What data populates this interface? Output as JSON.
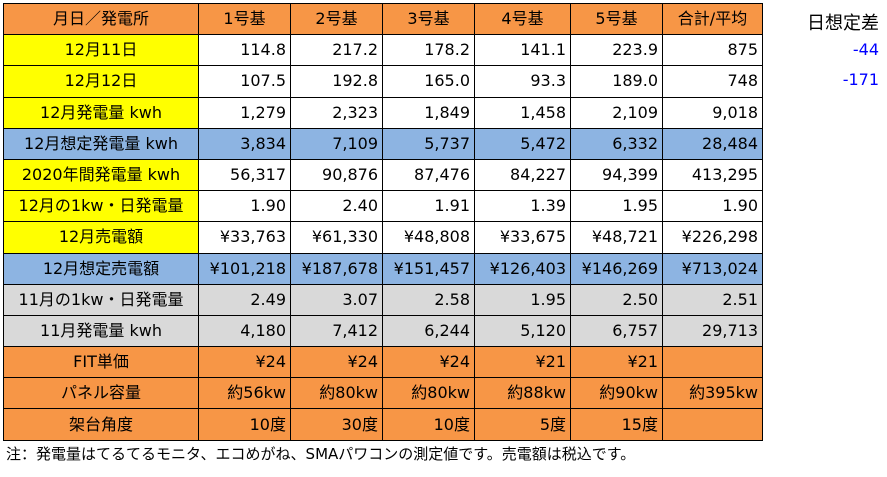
{
  "header": {
    "corner": "月日／発電所",
    "units": [
      "1号基",
      "2号基",
      "3号基",
      "4号基",
      "5号基"
    ],
    "total": "合計/平均"
  },
  "rows": [
    {
      "label": "12月11日",
      "values": [
        "114.8",
        "217.2",
        "178.2",
        "141.1",
        "223.9",
        "875"
      ]
    },
    {
      "label": "12月12日",
      "values": [
        "107.5",
        "192.8",
        "165.0",
        "93.3",
        "189.0",
        "748"
      ]
    },
    {
      "label": "12月発電量 kwh",
      "values": [
        "1,279",
        "2,323",
        "1,849",
        "1,458",
        "2,109",
        "9,018"
      ]
    },
    {
      "label": "12月想定発電量 kwh",
      "values": [
        "3,834",
        "7,109",
        "5,737",
        "5,472",
        "6,332",
        "28,484"
      ]
    },
    {
      "label": "2020年間発電量 kwh",
      "values": [
        "56,317",
        "90,876",
        "87,476",
        "84,227",
        "94,399",
        "413,295"
      ]
    },
    {
      "label": "12月の1kw・日発電量",
      "values": [
        "1.90",
        "2.40",
        "1.91",
        "1.39",
        "1.95",
        "1.90"
      ]
    },
    {
      "label": "12月売電額",
      "values": [
        "¥33,763",
        "¥61,330",
        "¥48,808",
        "¥33,675",
        "¥48,721",
        "¥226,298"
      ]
    },
    {
      "label": "12月想定売電額",
      "values": [
        "¥101,218",
        "¥187,678",
        "¥151,457",
        "¥126,403",
        "¥146,269",
        "¥713,024"
      ]
    },
    {
      "label": "11月の1kw・日発電量",
      "values": [
        "2.49",
        "3.07",
        "2.58",
        "1.95",
        "2.50",
        "2.51"
      ]
    },
    {
      "label": "11月発電量 kwh",
      "values": [
        "4,180",
        "7,412",
        "6,244",
        "5,120",
        "6,757",
        "29,713"
      ]
    },
    {
      "label": "FIT単価",
      "values": [
        "¥24",
        "¥24",
        "¥24",
        "¥21",
        "¥21",
        ""
      ]
    },
    {
      "label": "パネル容量",
      "values": [
        "約56kw",
        "約80kw",
        "約80kw",
        "約88kw",
        "約90kw",
        "約395kw"
      ]
    },
    {
      "label": "架台角度",
      "values": [
        "10度",
        "30度",
        "10度",
        "5度",
        "15度",
        ""
      ]
    }
  ],
  "side": {
    "title": "日想定差",
    "values": [
      "-44",
      "-171"
    ]
  },
  "note": "注：発電量はてるてるモニタ、エコめがね、SMAパワコンの測定値です。売電額は税込です。",
  "colors": {
    "header": "#F79646",
    "label_yellow": "#FFFF00",
    "row_blue": "#8DB4E2",
    "row_gray": "#D9D9D9",
    "diff_text": "#0000FF"
  }
}
